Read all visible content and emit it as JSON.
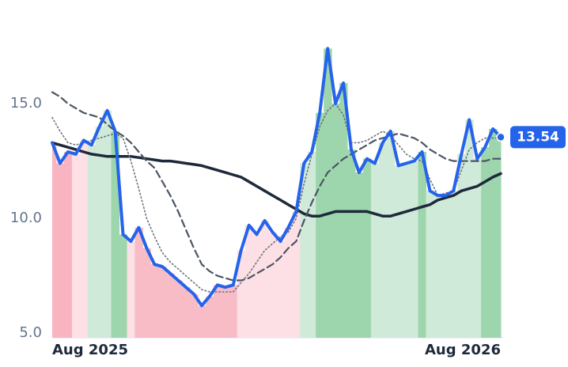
{
  "chart_data": {
    "type": "line",
    "categories": [
      "Aug 2025",
      null,
      null,
      null,
      null,
      null,
      null,
      null,
      null,
      null,
      null,
      null,
      null,
      null,
      null,
      null,
      null,
      null,
      null,
      null,
      null,
      null,
      null,
      null,
      null,
      null,
      null,
      null,
      null,
      null,
      null,
      null,
      null,
      null,
      null,
      null,
      null,
      null,
      null,
      null,
      null,
      null,
      null,
      null,
      null,
      null,
      null,
      null,
      null,
      null,
      null,
      null,
      null,
      null,
      null,
      null,
      null,
      "Aug 2026"
    ],
    "series": [
      {
        "color": "#2563eb",
        "values": [
          13.3,
          12.4,
          12.9,
          12.8,
          13.4,
          13.2,
          14.0,
          14.7,
          13.8,
          9.3,
          9.0,
          9.6,
          8.7,
          8.0,
          7.9,
          7.6,
          7.3,
          7.0,
          6.7,
          6.2,
          6.6,
          7.1,
          7.0,
          7.1,
          8.6,
          9.7,
          9.3,
          9.9,
          9.4,
          9.0,
          9.6,
          10.3,
          12.4,
          12.9,
          14.6,
          17.4,
          15.0,
          15.9,
          13.0,
          12.0,
          12.6,
          12.4,
          13.3,
          13.8,
          12.3,
          12.4,
          12.5,
          12.9,
          11.2,
          11.0,
          11.0,
          11.2,
          12.8,
          14.3,
          12.6,
          13.1,
          13.9,
          13.54
        ],
        "last_label": "13.54"
      },
      {
        "color": "#1e293b",
        "style": "solid",
        "values": [
          13.3,
          13.2,
          13.1,
          13.0,
          12.9,
          12.8,
          12.75,
          12.7,
          12.7,
          12.7,
          12.7,
          12.65,
          12.6,
          12.55,
          12.5,
          12.5,
          12.45,
          12.4,
          12.35,
          12.3,
          12.2,
          12.1,
          12.0,
          11.9,
          11.8,
          11.6,
          11.4,
          11.2,
          11.0,
          10.8,
          10.6,
          10.4,
          10.2,
          10.1,
          10.1,
          10.2,
          10.3,
          10.3,
          10.3,
          10.3,
          10.3,
          10.2,
          10.1,
          10.1,
          10.2,
          10.3,
          10.4,
          10.5,
          10.6,
          10.8,
          10.9,
          11.0,
          11.2,
          11.3,
          11.4,
          11.6,
          11.8,
          11.95
        ]
      },
      {
        "color": "#4b5563",
        "style": "dashed",
        "values": [
          15.5,
          15.3,
          15.0,
          14.8,
          14.6,
          14.5,
          14.4,
          14.1,
          13.8,
          13.6,
          13.3,
          12.9,
          12.5,
          12.2,
          11.6,
          11.0,
          10.3,
          9.5,
          8.7,
          8.0,
          7.7,
          7.5,
          7.4,
          7.3,
          7.3,
          7.4,
          7.6,
          7.8,
          8.0,
          8.3,
          8.7,
          9.0,
          9.9,
          10.7,
          11.4,
          12.0,
          12.3,
          12.6,
          12.8,
          13.0,
          13.2,
          13.4,
          13.5,
          13.6,
          13.7,
          13.6,
          13.5,
          13.3,
          13.0,
          12.8,
          12.6,
          12.5,
          12.5,
          12.5,
          12.5,
          12.5,
          12.6,
          12.6
        ]
      },
      {
        "color": "#6b7280",
        "style": "dotted",
        "values": [
          14.4,
          13.8,
          13.3,
          13.2,
          13.3,
          13.4,
          13.5,
          13.6,
          13.7,
          13.5,
          12.5,
          11.3,
          10.0,
          9.2,
          8.5,
          8.1,
          7.8,
          7.5,
          7.2,
          6.9,
          6.8,
          6.8,
          6.8,
          6.8,
          7.2,
          7.6,
          8.1,
          8.6,
          8.9,
          9.2,
          9.4,
          10.0,
          11.5,
          12.8,
          14.0,
          14.7,
          15.0,
          14.5,
          13.3,
          13.3,
          13.4,
          13.6,
          13.8,
          13.6,
          13.2,
          12.8,
          12.6,
          12.5,
          11.7,
          11.0,
          11.1,
          11.2,
          12.1,
          13.0,
          13.3,
          13.5,
          13.5,
          13.5
        ]
      }
    ],
    "area_colors": [
      "#f8b4c0",
      "#f8b4c0",
      "#f8b4c0",
      "#fde0e5",
      "#fde0e5",
      "#cfead8",
      "#cfead8",
      "#cfead8",
      "#9dd5ad",
      "#9dd5ad",
      "#fde0e5",
      "#f8bcc6",
      "#f8bcc6",
      "#f8bcc6",
      "#f8bcc6",
      "#f8bcc6",
      "#f8bcc6",
      "#f8bcc6",
      "#f8bcc6",
      "#f8bcc6",
      "#f8bcc6",
      "#f8bcc6",
      "#f8bcc6",
      "#f8bcc6",
      "#fde0e5",
      "#fde0e5",
      "#fde0e5",
      "#fde0e5",
      "#fde0e5",
      "#fde0e5",
      "#fde0e5",
      "#fde0e5",
      "#cfead8",
      "#cfead8",
      "#9dd5ad",
      "#9dd5ad",
      "#9dd5ad",
      "#9dd5ad",
      "#9dd5ad",
      "#9dd5ad",
      "#9dd5ad",
      "#cfead8",
      "#cfead8",
      "#cfead8",
      "#cfead8",
      "#cfead8",
      "#cfead8",
      "#9dd5ad",
      "#cfead8",
      "#cfead8",
      "#cfead8",
      "#cfead8",
      "#cfead8",
      "#cfead8",
      "#cfead8",
      "#9dd5ad",
      "#9dd5ad",
      "#9dd5ad"
    ],
    "ylim": [
      4.8,
      18
    ],
    "yticks": [
      {
        "value": 5,
        "label": "5.0"
      },
      {
        "value": 10,
        "label": "10.0"
      },
      {
        "value": 15,
        "label": "15.0"
      }
    ],
    "grid": false
  }
}
